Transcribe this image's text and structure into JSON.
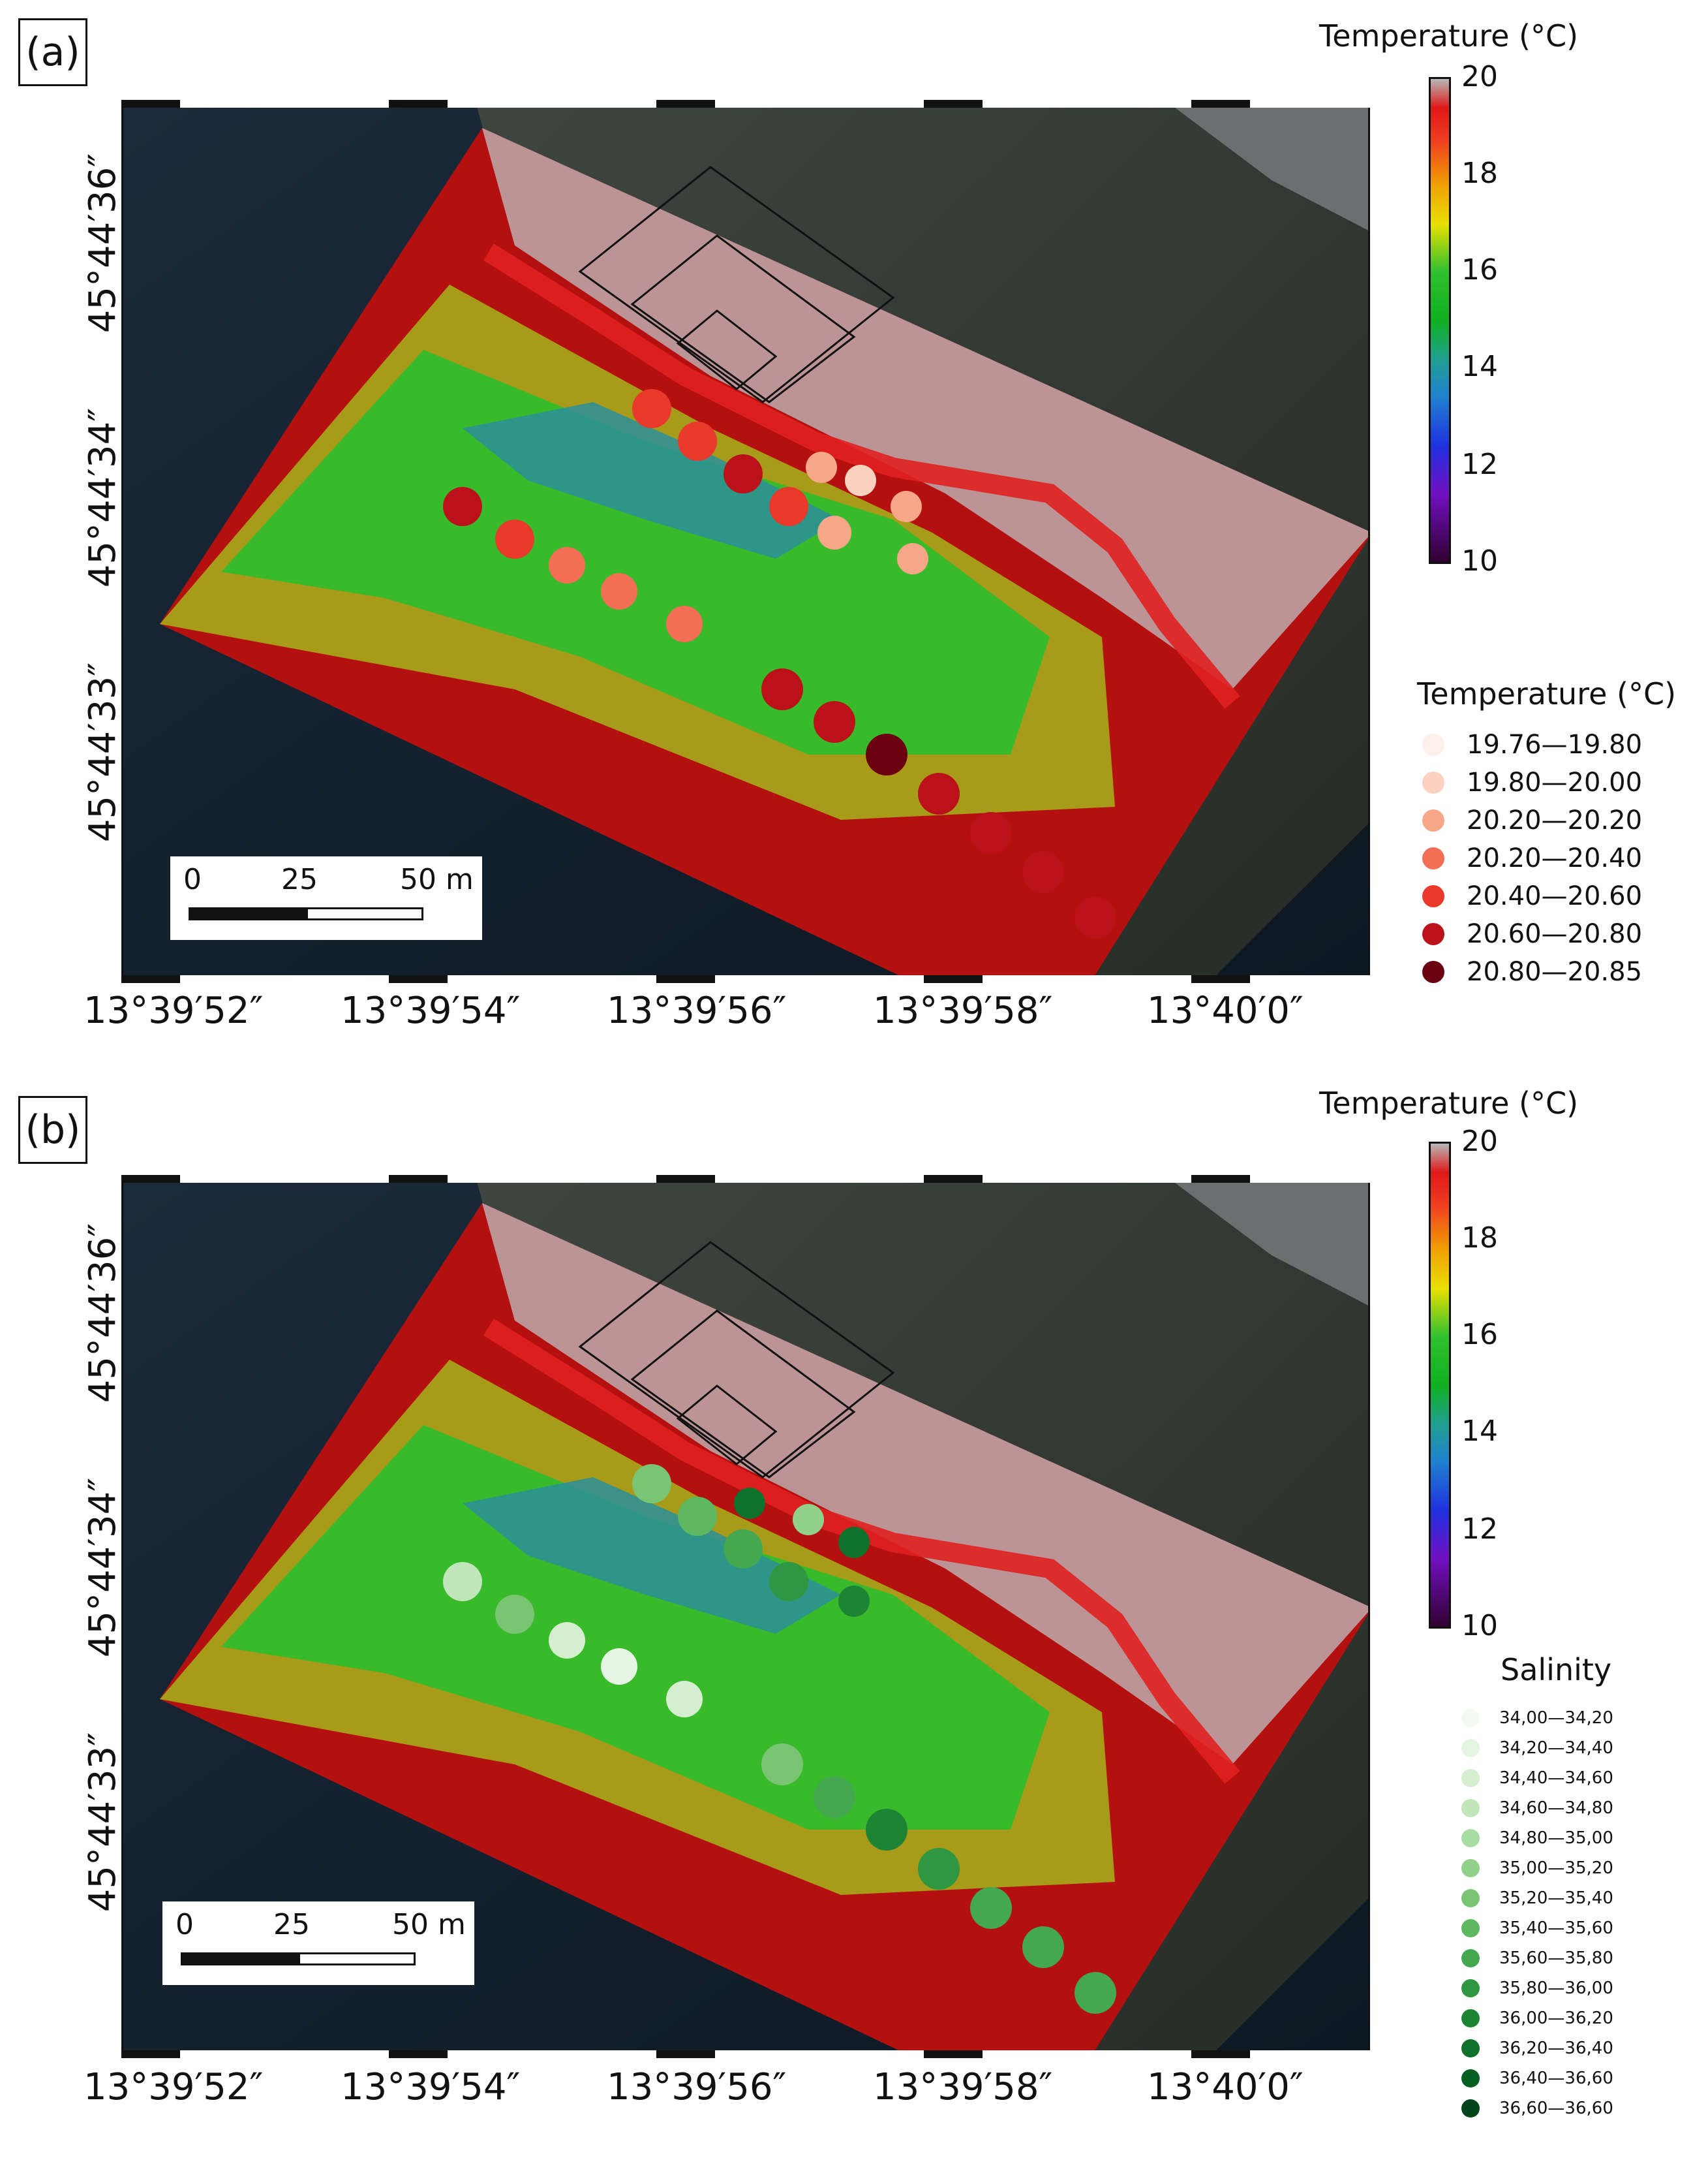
{
  "panels": [
    {
      "label": "(a)",
      "lat_labels": [
        "45°44′36″",
        "45°44′34″",
        "45°44′33″"
      ],
      "lon_labels": [
        "13°39′52″",
        "13°39′54″",
        "13°39′56″",
        "13°39′58″",
        "13°40′0″"
      ],
      "scalebar": {
        "ticks": [
          "0",
          "25",
          "50 m"
        ]
      },
      "colorbar": {
        "title": "Temperature (°C)",
        "ticks": [
          "20",
          "18",
          "16",
          "14",
          "12",
          "10"
        ],
        "range": [
          10,
          20
        ]
      },
      "legend": {
        "title": "Temperature (°C)",
        "entries": [
          {
            "label": "19.76—19.80",
            "color": "#fdf0ea"
          },
          {
            "label": "19.80—20.00",
            "color": "#fbd2c0"
          },
          {
            "label": "20.20—20.20",
            "color": "#f8a688"
          },
          {
            "label": "20.20—20.40",
            "color": "#f36f55"
          },
          {
            "label": "20.40—20.60",
            "color": "#e8392a"
          },
          {
            "label": "20.60—20.80",
            "color": "#bb1119"
          },
          {
            "label": "20.80—20.85",
            "color": "#6b0010"
          }
        ]
      }
    },
    {
      "label": "(b)",
      "lat_labels": [
        "45°44′36″",
        "45°44′34″",
        "45°44′33″"
      ],
      "lon_labels": [
        "13°39′52″",
        "13°39′54″",
        "13°39′56″",
        "13°39′58″",
        "13°40′0″"
      ],
      "scalebar": {
        "ticks": [
          "0",
          "25",
          "50 m"
        ]
      },
      "colorbar": {
        "title": "Temperature (°C)",
        "ticks": [
          "20",
          "18",
          "16",
          "14",
          "12",
          "10"
        ],
        "range": [
          10,
          20
        ]
      },
      "legend": {
        "title": "Salinity",
        "entries": [
          {
            "label": "34,00—34,20",
            "color": "#f5fbf4"
          },
          {
            "label": "34,20—34,40",
            "color": "#e6f5e3"
          },
          {
            "label": "34,40—34,60",
            "color": "#d4eecf"
          },
          {
            "label": "34,60—34,80",
            "color": "#c0e6ba"
          },
          {
            "label": "34,80—35,00",
            "color": "#a9dca3"
          },
          {
            "label": "35,00—35,20",
            "color": "#92d18b"
          },
          {
            "label": "35,20—35,40",
            "color": "#79c574"
          },
          {
            "label": "35,40—35,60",
            "color": "#5db860"
          },
          {
            "label": "35,60—35,80",
            "color": "#43a84f"
          },
          {
            "label": "35,80—36,00",
            "color": "#2f9641"
          },
          {
            "label": "36,00—36,20",
            "color": "#1d8436"
          },
          {
            "label": "36,20—36,40",
            "color": "#0e712c"
          },
          {
            "label": "36,40—36,60",
            "color": "#055e23"
          },
          {
            "label": "36,60—36,60",
            "color": "#00441b"
          }
        ]
      }
    }
  ]
}
